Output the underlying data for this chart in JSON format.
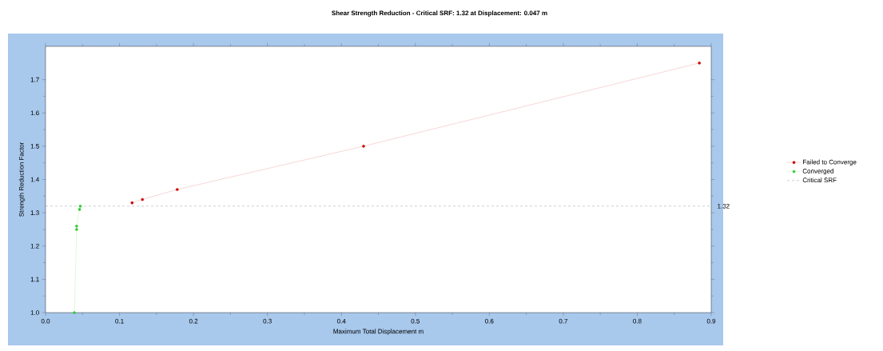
{
  "chart_data": {
    "type": "line",
    "title": "Shear Strength Reduction - Critical SRF: 1.32 at Displacement: 0.047 m",
    "xlabel": "Maximum Total Displacement m",
    "ylabel": "Strength Reduction Factor",
    "series": [
      {
        "name": "Failed to Converge",
        "color": "#cc0000",
        "x": [
          0.117,
          0.131,
          0.178,
          0.43,
          0.884
        ],
        "values": [
          1.33,
          1.34,
          1.37,
          1.5,
          1.75
        ]
      },
      {
        "name": "Converged",
        "color": "#33cc33",
        "x": [
          0.039,
          0.042,
          0.042,
          0.046,
          0.047
        ],
        "values": [
          1.0,
          1.25,
          1.26,
          1.31,
          1.32
        ]
      }
    ],
    "ref_lines": [
      {
        "axis": "y",
        "value": 1.32,
        "label": "Critical SRF",
        "color": "#888888",
        "line_style": "dashed"
      }
    ],
    "annotations": [
      {
        "text": "1.32",
        "x": 0.9,
        "y": 1.32
      }
    ],
    "xlim": [
      0,
      0.9
    ],
    "ylim": [
      1.0,
      1.8
    ],
    "xticks": [
      {
        "value": 0,
        "label": "0.0"
      },
      0.1,
      0.2,
      0.3,
      0.4,
      0.5,
      0.6,
      0.7,
      0.8,
      0.9
    ],
    "yticks": [
      {
        "value": 1.0,
        "label": "1.0"
      },
      1.1,
      1.2,
      1.3,
      1.4,
      1.5,
      1.6,
      1.7
    ],
    "marker": "circle",
    "line_style": "solid",
    "grid": false,
    "legend": "right"
  }
}
